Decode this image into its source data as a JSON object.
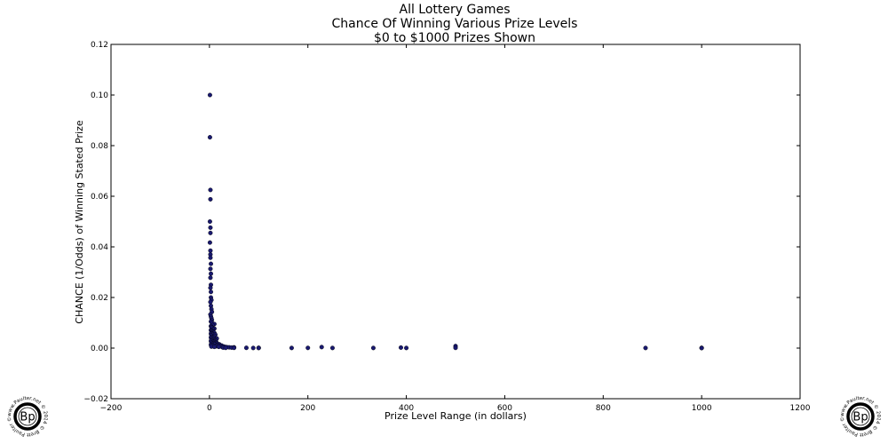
{
  "chart_data": {
    "type": "scatter",
    "title": [
      "All Lottery Games",
      "Chance Of Winning Various Prize Levels",
      "$0 to $1000 Prizes Shown"
    ],
    "xlabel": "Prize Level Range (in dollars)",
    "ylabel": "CHANCE (1/Odds) of Winning Stated Prize",
    "xlim": [
      -200,
      1200
    ],
    "ylim": [
      -0.02,
      0.12
    ],
    "xticks": [
      "−200",
      "0",
      "200",
      "400",
      "600",
      "800",
      "1000",
      "1200"
    ],
    "yticks": [
      "−0.02",
      "0.00",
      "0.02",
      "0.04",
      "0.06",
      "0.08",
      "0.10",
      "0.12"
    ],
    "grid": false,
    "marker_color": "#191970",
    "points": [
      [
        1,
        0.1
      ],
      [
        1,
        0.0833
      ],
      [
        2,
        0.0625
      ],
      [
        2,
        0.0588
      ],
      [
        1,
        0.05
      ],
      [
        2,
        0.0476
      ],
      [
        2,
        0.0455
      ],
      [
        1,
        0.0417
      ],
      [
        2,
        0.0385
      ],
      [
        2,
        0.037
      ],
      [
        2,
        0.0357
      ],
      [
        3,
        0.0333
      ],
      [
        2,
        0.0313
      ],
      [
        3,
        0.0294
      ],
      [
        2,
        0.0278
      ],
      [
        3,
        0.025
      ],
      [
        2,
        0.0238
      ],
      [
        3,
        0.0222
      ],
      [
        3,
        0.02
      ],
      [
        4,
        0.019
      ],
      [
        2,
        0.0182
      ],
      [
        3,
        0.0167
      ],
      [
        4,
        0.0154
      ],
      [
        5,
        0.0143
      ],
      [
        2,
        0.0133
      ],
      [
        3,
        0.0125
      ],
      [
        4,
        0.0118
      ],
      [
        5,
        0.0111
      ],
      [
        3,
        0.0105
      ],
      [
        5,
        0.01
      ],
      [
        10,
        0.0095
      ],
      [
        6,
        0.0091
      ],
      [
        3,
        0.0087
      ],
      [
        4,
        0.0083
      ],
      [
        5,
        0.008
      ],
      [
        10,
        0.0077
      ],
      [
        7,
        0.0074
      ],
      [
        3,
        0.0071
      ],
      [
        5,
        0.0069
      ],
      [
        6,
        0.0067
      ],
      [
        8,
        0.0064
      ],
      [
        4,
        0.0062
      ],
      [
        10,
        0.006
      ],
      [
        5,
        0.0059
      ],
      [
        3,
        0.0057
      ],
      [
        6,
        0.0056
      ],
      [
        7,
        0.0054
      ],
      [
        12,
        0.0053
      ],
      [
        4,
        0.005
      ],
      [
        10,
        0.0048
      ],
      [
        5,
        0.0045
      ],
      [
        8,
        0.0043
      ],
      [
        3,
        0.0042
      ],
      [
        6,
        0.004
      ],
      [
        15,
        0.0038
      ],
      [
        9,
        0.0037
      ],
      [
        4,
        0.0035
      ],
      [
        11,
        0.0033
      ],
      [
        5,
        0.0031
      ],
      [
        7,
        0.003
      ],
      [
        13,
        0.0029
      ],
      [
        3,
        0.0028
      ],
      [
        10,
        0.0027
      ],
      [
        8,
        0.0025
      ],
      [
        6,
        0.0024
      ],
      [
        14,
        0.0023
      ],
      [
        4,
        0.0022
      ],
      [
        12,
        0.002
      ],
      [
        9,
        0.0019
      ],
      [
        5,
        0.0018
      ],
      [
        16,
        0.0017
      ],
      [
        7,
        0.0016
      ],
      [
        20,
        0.0015
      ],
      [
        11,
        0.0014
      ],
      [
        3,
        0.0013
      ],
      [
        18,
        0.0012
      ],
      [
        6,
        0.0011
      ],
      [
        15,
        0.001
      ],
      [
        25,
        0.001
      ],
      [
        8,
        0.0009
      ],
      [
        22,
        0.0008
      ],
      [
        13,
        0.0007
      ],
      [
        4,
        0.0006
      ],
      [
        30,
        0.0006
      ],
      [
        10,
        0.0005
      ],
      [
        19,
        0.0005
      ],
      [
        26,
        0.0004
      ],
      [
        35,
        0.0004
      ],
      [
        40,
        0.0003
      ],
      [
        50,
        0.0003
      ],
      [
        45,
        0.0002
      ],
      [
        28,
        0.0002
      ],
      [
        33,
        0.0001
      ],
      [
        50,
        0.0001
      ],
      [
        75,
        0.0001
      ],
      [
        89,
        5e-05
      ],
      [
        100,
        0.0001
      ],
      [
        100,
        5e-05
      ],
      [
        167,
        5e-05
      ],
      [
        200,
        8e-05
      ],
      [
        228,
        0.0004
      ],
      [
        250,
        5e-05
      ],
      [
        333,
        5e-05
      ],
      [
        389,
        0.0002
      ],
      [
        400,
        5e-05
      ],
      [
        500,
        0.0008
      ],
      [
        500,
        0.0001
      ],
      [
        886,
        5e-05
      ],
      [
        1000,
        0.0001
      ],
      [
        1000,
        2e-05
      ]
    ]
  },
  "watermark": {
    "ring_text": "www.Paulter.net © 2014 © Brett Paulter ©",
    "initials": "Bp"
  }
}
